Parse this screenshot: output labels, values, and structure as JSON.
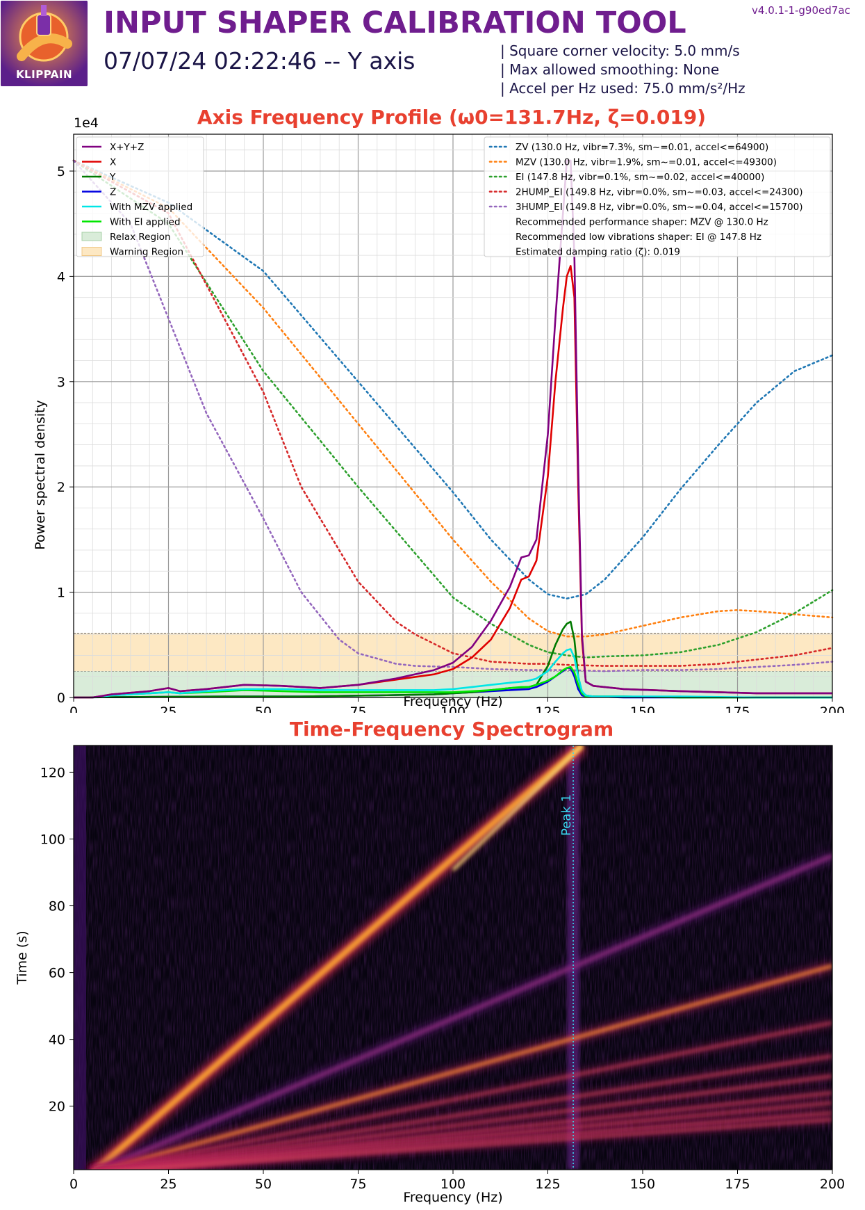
{
  "header": {
    "logo_text": "KLIPPAIN",
    "title": "INPUT SHAPER CALIBRATION TOOL",
    "subtitle": "07/07/24 02:22:46 -- Y axis",
    "version": "v4.0.1-1-g90ed7ac",
    "info_lines": [
      "| Square corner velocity: 5.0 mm/s",
      "| Max allowed smoothing: None",
      "| Accel per Hz used: 75.0 mm/s²/Hz"
    ]
  },
  "colors": {
    "title": "#6f1d8e",
    "chart_title": "#e8402f",
    "xyz": "#800080",
    "x": "#e00000",
    "y": "#007a00",
    "z": "#0000e0",
    "mzv_applied": "#00e6e6",
    "ei_applied": "#00e600",
    "zv": "#1f77b4",
    "mzv": "#ff7f0e",
    "ei": "#2ca02c",
    "hump2": "#d62728",
    "hump3": "#9467bd",
    "relax": "#d9ecd9",
    "warning": "#fde8c3"
  },
  "chart_data": [
    {
      "type": "line",
      "title": "Axis Frequency Profile (ω0=131.7Hz, ζ=0.019)",
      "xlabel": "Frequency (Hz)",
      "ylabel": "Power spectral density",
      "y_scale_label": "1e4",
      "xlim": [
        0,
        200
      ],
      "ylim": [
        0,
        5.35
      ],
      "y_unit_multiplier": 10000,
      "x_ticks": [
        0,
        25,
        50,
        75,
        100,
        125,
        150,
        175,
        200
      ],
      "y_ticks": [
        0,
        1,
        2,
        3,
        4,
        5
      ],
      "grid": true,
      "legend_position": "top-left",
      "regions": [
        {
          "name": "Relax Region",
          "y_range": [
            0,
            0.25
          ]
        },
        {
          "name": "Warning Region",
          "y_range": [
            0.25,
            0.61
          ]
        }
      ],
      "series": [
        {
          "name": "X+Y+Z",
          "color_key": "xyz",
          "x": [
            0,
            5,
            10,
            20,
            25,
            28,
            35,
            45,
            55,
            65,
            75,
            85,
            95,
            100,
            105,
            110,
            115,
            118,
            120,
            122,
            125,
            127,
            129,
            130,
            131,
            132,
            133,
            134,
            135,
            137,
            145,
            160,
            180,
            200
          ],
          "y": [
            0,
            0,
            0.03,
            0.06,
            0.09,
            0.06,
            0.08,
            0.12,
            0.11,
            0.09,
            0.12,
            0.18,
            0.26,
            0.33,
            0.48,
            0.73,
            1.05,
            1.33,
            1.35,
            1.5,
            2.5,
            3.6,
            4.6,
            5.1,
            5.1,
            4.2,
            2.2,
            0.6,
            0.15,
            0.11,
            0.08,
            0.06,
            0.04,
            0.04
          ]
        },
        {
          "name": "X",
          "color_key": "x",
          "x": [
            0,
            5,
            10,
            20,
            25,
            28,
            35,
            45,
            55,
            65,
            75,
            85,
            95,
            100,
            105,
            110,
            115,
            118,
            120,
            122,
            125,
            127,
            129,
            130,
            131,
            132,
            133,
            134,
            135,
            137,
            145,
            160,
            180,
            200
          ],
          "y": [
            0,
            0,
            0.03,
            0.06,
            0.09,
            0.06,
            0.08,
            0.12,
            0.11,
            0.09,
            0.12,
            0.17,
            0.22,
            0.27,
            0.38,
            0.55,
            0.85,
            1.12,
            1.15,
            1.3,
            2.1,
            3.0,
            3.7,
            4.0,
            4.1,
            3.8,
            2.0,
            0.55,
            0.15,
            0.11,
            0.08,
            0.06,
            0.04,
            0.04
          ]
        },
        {
          "name": "Y",
          "color_key": "y",
          "x": [
            0,
            40,
            60,
            80,
            95,
            100,
            105,
            110,
            115,
            120,
            122,
            125,
            127,
            129,
            130,
            131,
            132,
            133,
            134,
            135,
            137,
            145,
            160,
            200
          ],
          "y": [
            0,
            0.01,
            0.01,
            0.02,
            0.03,
            0.04,
            0.05,
            0.07,
            0.09,
            0.1,
            0.12,
            0.3,
            0.5,
            0.65,
            0.7,
            0.72,
            0.55,
            0.2,
            0.05,
            0.02,
            0.01,
            0.01,
            0.0,
            0.0
          ]
        },
        {
          "name": "Z",
          "color_key": "z",
          "x": [
            0,
            40,
            60,
            80,
            95,
            100,
            105,
            110,
            115,
            120,
            122,
            125,
            127,
            129,
            130,
            131,
            132,
            133,
            134,
            135,
            137,
            145,
            160,
            200
          ],
          "y": [
            0,
            0.01,
            0.01,
            0.02,
            0.03,
            0.04,
            0.05,
            0.06,
            0.07,
            0.08,
            0.1,
            0.15,
            0.2,
            0.25,
            0.28,
            0.28,
            0.2,
            0.08,
            0.02,
            0.01,
            0.01,
            0.0,
            0.0,
            0.0
          ]
        },
        {
          "name": "With MZV applied",
          "color_key": "mzv_applied",
          "x": [
            0,
            5,
            10,
            20,
            25,
            28,
            35,
            45,
            55,
            65,
            75,
            85,
            95,
            100,
            105,
            110,
            115,
            118,
            120,
            122,
            125,
            127,
            129,
            130,
            131,
            132,
            133,
            134,
            135,
            137,
            145,
            160,
            180,
            200
          ],
          "y": [
            0,
            0,
            0.02,
            0.04,
            0.05,
            0.04,
            0.06,
            0.08,
            0.08,
            0.07,
            0.07,
            0.07,
            0.07,
            0.08,
            0.1,
            0.12,
            0.14,
            0.15,
            0.16,
            0.18,
            0.25,
            0.34,
            0.42,
            0.45,
            0.46,
            0.38,
            0.2,
            0.06,
            0.02,
            0.01,
            0.01,
            0.01,
            0.0,
            0.0
          ]
        },
        {
          "name": "With EI applied",
          "color_key": "ei_applied",
          "x": [
            0,
            5,
            10,
            20,
            25,
            28,
            35,
            45,
            55,
            65,
            75,
            85,
            95,
            100,
            105,
            110,
            115,
            118,
            120,
            122,
            125,
            127,
            129,
            130,
            131,
            132,
            133,
            134,
            135,
            137,
            145,
            160,
            180,
            200
          ],
          "y": [
            0,
            0,
            0.02,
            0.04,
            0.05,
            0.04,
            0.05,
            0.07,
            0.06,
            0.05,
            0.05,
            0.05,
            0.05,
            0.05,
            0.06,
            0.07,
            0.09,
            0.1,
            0.1,
            0.12,
            0.16,
            0.2,
            0.26,
            0.28,
            0.29,
            0.24,
            0.12,
            0.04,
            0.01,
            0.01,
            0.01,
            0.0,
            0.0,
            0.0
          ]
        },
        {
          "name": "ZV (130.0 Hz, vibr=7.3%, sm~=0.01, accel<=64900)",
          "color_key": "zv",
          "dotted": true,
          "x": [
            0,
            25,
            50,
            75,
            100,
            110,
            120,
            125,
            130,
            135,
            140,
            150,
            160,
            170,
            180,
            190,
            200
          ],
          "y": [
            5.1,
            4.7,
            4.05,
            3.0,
            1.95,
            1.5,
            1.12,
            0.98,
            0.94,
            0.98,
            1.12,
            1.52,
            1.98,
            2.4,
            2.8,
            3.1,
            3.25
          ]
        },
        {
          "name": "MZV (130.0 Hz, vibr=1.9%, sm~=0.01, accel<=49300)",
          "color_key": "mzv",
          "dotted": true,
          "x": [
            0,
            25,
            50,
            75,
            100,
            110,
            120,
            125,
            130,
            135,
            140,
            150,
            160,
            170,
            175,
            180,
            190,
            200
          ],
          "y": [
            5.1,
            4.65,
            3.7,
            2.6,
            1.5,
            1.1,
            0.75,
            0.63,
            0.58,
            0.58,
            0.6,
            0.68,
            0.76,
            0.82,
            0.83,
            0.82,
            0.79,
            0.76
          ]
        },
        {
          "name": "EI (147.8 Hz, vibr=0.1%, sm~=0.02, accel<=40000)",
          "color_key": "ei",
          "dotted": true,
          "x": [
            0,
            25,
            50,
            75,
            100,
            110,
            120,
            125,
            130,
            135,
            140,
            150,
            160,
            170,
            180,
            190,
            200
          ],
          "y": [
            5.1,
            4.5,
            3.1,
            2.0,
            0.95,
            0.7,
            0.5,
            0.43,
            0.4,
            0.38,
            0.39,
            0.4,
            0.43,
            0.5,
            0.62,
            0.8,
            1.02
          ]
        },
        {
          "name": "2HUMP_EI (149.8 Hz, vibr=0.0%, sm~=0.03, accel<=24300)",
          "color_key": "hump2",
          "dotted": true,
          "x": [
            0,
            25,
            50,
            60,
            75,
            85,
            90,
            100,
            110,
            120,
            125,
            130,
            140,
            150,
            160,
            170,
            180,
            190,
            200
          ],
          "y": [
            5.1,
            4.6,
            2.9,
            2.0,
            1.1,
            0.72,
            0.6,
            0.42,
            0.34,
            0.32,
            0.32,
            0.31,
            0.3,
            0.3,
            0.3,
            0.32,
            0.36,
            0.4,
            0.47
          ]
        },
        {
          "name": "3HUMP_EI (149.8 Hz, vibr=0.0%, sm~=0.04, accel<=15700)",
          "color_key": "hump3",
          "dotted": true,
          "x": [
            0,
            15,
            25,
            35,
            50,
            60,
            70,
            75,
            85,
            90,
            100,
            110,
            120,
            130,
            140,
            150,
            160,
            170,
            180,
            190,
            200
          ],
          "y": [
            5.1,
            4.5,
            3.6,
            2.7,
            1.7,
            1.0,
            0.55,
            0.42,
            0.32,
            0.3,
            0.29,
            0.27,
            0.26,
            0.26,
            0.25,
            0.26,
            0.26,
            0.27,
            0.29,
            0.31,
            0.34
          ]
        }
      ],
      "legend_notes": [
        "Recommended performance shaper: MZV @ 130.0 Hz",
        "Recommended low vibrations shaper: EI @ 147.8 Hz",
        "Estimated damping ratio (ζ): 0.019"
      ]
    },
    {
      "type": "heatmap",
      "title": "Time-Frequency Spectrogram",
      "xlabel": "Frequency (Hz)",
      "ylabel": "Time (s)",
      "xlim": [
        0,
        200
      ],
      "ylim": [
        1,
        128
      ],
      "x_ticks": [
        0,
        25,
        50,
        75,
        100,
        125,
        150,
        175,
        200
      ],
      "y_ticks": [
        20,
        40,
        60,
        80,
        100,
        120
      ],
      "colormap": "inferno",
      "marker": {
        "label": "Peak 1",
        "x": 131.7
      },
      "sweep_lines": [
        {
          "harmonic": 1,
          "points": [
            [
              5,
              0
            ],
            [
              134,
              128
            ]
          ]
        },
        {
          "harmonic": 2,
          "points": [
            [
              5,
              0
            ],
            [
              200,
              95
            ]
          ]
        },
        {
          "harmonic": 3,
          "points": [
            [
              5,
              0
            ],
            [
              200,
              62
            ]
          ]
        },
        {
          "harmonic": 4,
          "points": [
            [
              5,
              0
            ],
            [
              200,
              45
            ]
          ]
        },
        {
          "harmonic": 5,
          "points": [
            [
              5,
              0
            ],
            [
              200,
              35
            ]
          ]
        },
        {
          "harmonic": 6,
          "points": [
            [
              5,
              0
            ],
            [
              200,
              29
            ]
          ]
        },
        {
          "harmonic": 7,
          "points": [
            [
              5,
              0
            ],
            [
              200,
              24
            ]
          ]
        },
        {
          "harmonic": 8,
          "points": [
            [
              5,
              0
            ],
            [
              200,
              21
            ]
          ]
        },
        {
          "harmonic": 9,
          "points": [
            [
              5,
              0
            ],
            [
              200,
              18
            ]
          ]
        },
        {
          "harmonic": 10,
          "points": [
            [
              5,
              0
            ],
            [
              200,
              16
            ]
          ]
        }
      ]
    }
  ]
}
